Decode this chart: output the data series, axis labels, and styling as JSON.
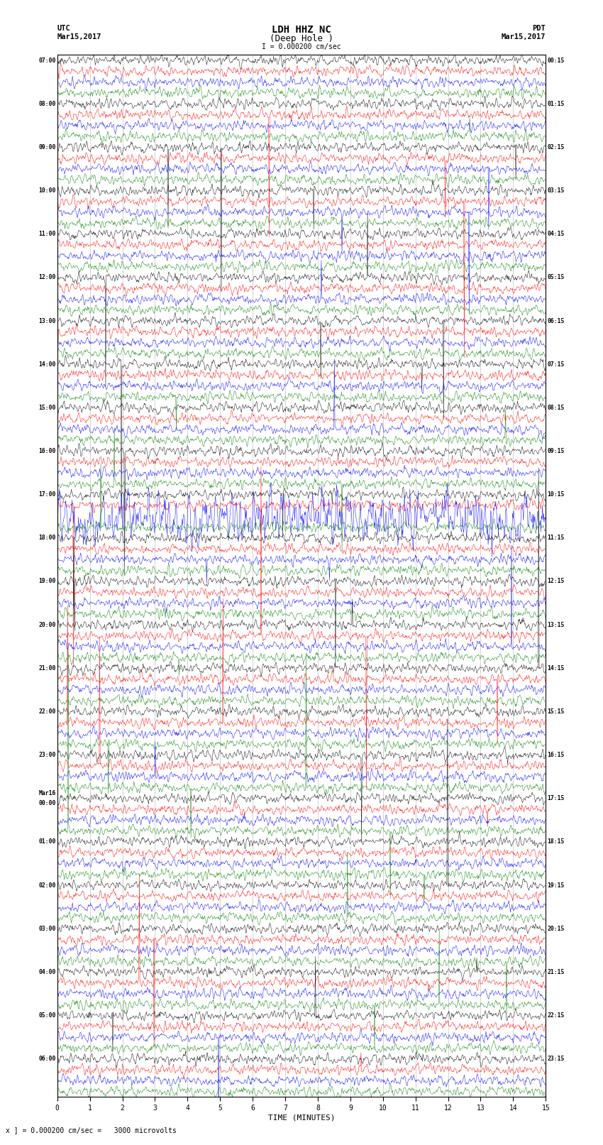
{
  "title_line1": "LDH HHZ NC",
  "title_line2": "(Deep Hole )",
  "title_line3": "I = 0.000200 cm/sec",
  "left_label_top": "UTC",
  "left_label_date": "Mar15,2017",
  "right_label_top": "PDT",
  "right_label_date": "Mar15,2017",
  "bottom_label": "TIME (MINUTES)",
  "bottom_note": "x ] = 0.000200 cm/sec =   3000 microvolts",
  "total_rows": 96,
  "samples_per_row": 900,
  "colors_cycle": [
    "black",
    "red",
    "blue",
    "green"
  ],
  "fig_width": 8.5,
  "fig_height": 16.13,
  "bg_color": "white",
  "left_time_labels": [
    "07:00",
    "",
    "",
    "",
    "08:00",
    "",
    "",
    "",
    "09:00",
    "",
    "",
    "",
    "10:00",
    "",
    "",
    "",
    "11:00",
    "",
    "",
    "",
    "12:00",
    "",
    "",
    "",
    "13:00",
    "",
    "",
    "",
    "14:00",
    "",
    "",
    "",
    "15:00",
    "",
    "",
    "",
    "16:00",
    "",
    "",
    "",
    "17:00",
    "",
    "",
    "",
    "18:00",
    "",
    "",
    "",
    "19:00",
    "",
    "",
    "",
    "20:00",
    "",
    "",
    "",
    "21:00",
    "",
    "",
    "",
    "22:00",
    "",
    "",
    "",
    "23:00",
    "",
    "",
    "",
    "Mar16\n00:00",
    "",
    "",
    "",
    "01:00",
    "",
    "",
    "",
    "02:00",
    "",
    "",
    "",
    "03:00",
    "",
    "",
    "",
    "04:00",
    "",
    "",
    "",
    "05:00",
    "",
    "",
    "",
    "06:00",
    "",
    "",
    ""
  ],
  "right_time_labels": [
    "00:15",
    "",
    "",
    "",
    "01:15",
    "",
    "",
    "",
    "02:15",
    "",
    "",
    "",
    "03:15",
    "",
    "",
    "",
    "04:15",
    "",
    "",
    "",
    "05:15",
    "",
    "",
    "",
    "06:15",
    "",
    "",
    "",
    "07:15",
    "",
    "",
    "",
    "08:15",
    "",
    "",
    "",
    "09:15",
    "",
    "",
    "",
    "10:15",
    "",
    "",
    "",
    "11:15",
    "",
    "",
    "",
    "12:15",
    "",
    "",
    "",
    "13:15",
    "",
    "",
    "",
    "14:15",
    "",
    "",
    "",
    "15:15",
    "",
    "",
    "",
    "16:15",
    "",
    "",
    "",
    "17:15",
    "",
    "",
    "",
    "18:15",
    "",
    "",
    "",
    "19:15",
    "",
    "",
    "",
    "20:15",
    "",
    "",
    "",
    "21:15",
    "",
    "",
    "",
    "22:15",
    "",
    "",
    "",
    "23:15",
    "",
    "",
    ""
  ],
  "xmin": 0,
  "xmax": 15,
  "xticks": [
    0,
    1,
    2,
    3,
    4,
    5,
    6,
    7,
    8,
    9,
    10,
    11,
    12,
    13,
    14,
    15
  ],
  "noise_scale": 0.12,
  "spike_probability": 0.0008,
  "spike_scale": 2.5,
  "trace_amplitude": 0.38,
  "vertical_lines_minutes": [
    1,
    2,
    3,
    4,
    5,
    6,
    7,
    8,
    9,
    10,
    11,
    12,
    13,
    14
  ],
  "grid_color": "#999999",
  "grid_alpha": 0.6,
  "amplified_rows": [
    41,
    42,
    96
  ],
  "amplified_factors": [
    1.0,
    5.0,
    3.0
  ]
}
